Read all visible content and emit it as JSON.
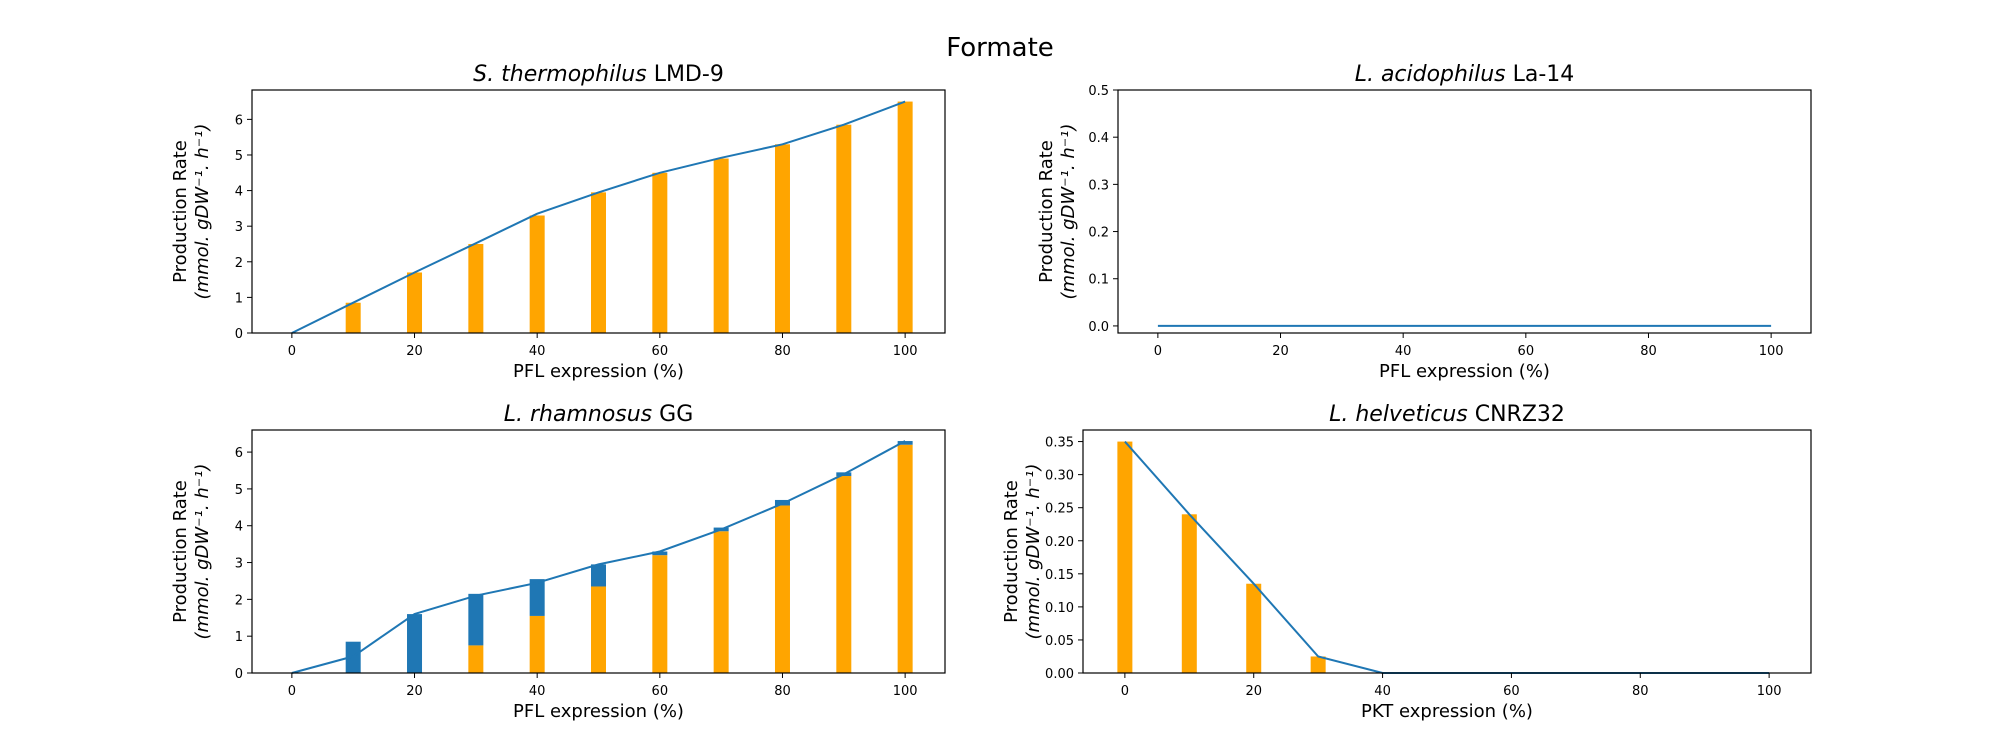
{
  "figure": {
    "suptitle": "Formate",
    "colors": {
      "line": "#1f77b4",
      "bar_orange": "#ffa500",
      "bar_blue": "#1f77b4"
    }
  },
  "chart_data": [
    {
      "type": "bar",
      "title_italic": "S. thermophilus",
      "title_rest": "LMD-9",
      "xlabel": "PFL expression (%)",
      "ylabel_line1": "Production Rate",
      "ylabel_line2": "(mmol. gDW⁻¹. h⁻¹)",
      "xlim": [
        -6.5,
        106.5
      ],
      "ylim": [
        0,
        6.825
      ],
      "xticks": [
        0,
        20,
        40,
        60,
        80,
        100
      ],
      "yticks": [
        0,
        1,
        2,
        3,
        4,
        5,
        6
      ],
      "x": [
        0,
        10,
        20,
        30,
        40,
        50,
        60,
        70,
        80,
        90,
        100
      ],
      "line": [
        0,
        0.85,
        1.7,
        2.52,
        3.35,
        3.95,
        4.5,
        4.92,
        5.3,
        5.85,
        6.5
      ],
      "bars_orange": [
        0,
        0.85,
        1.7,
        2.5,
        3.3,
        3.95,
        4.5,
        4.9,
        5.3,
        5.85,
        6.5
      ],
      "bars_blue": [
        0,
        0,
        0,
        0,
        0,
        0,
        0,
        0,
        0,
        0,
        0
      ]
    },
    {
      "type": "line",
      "title_italic": "L. acidophilus",
      "title_rest": "La-14",
      "xlabel": "PFL expression (%)",
      "ylabel_line1": "Production Rate",
      "ylabel_line2": "(mmol. gDW⁻¹. h⁻¹)",
      "xlim": [
        -6.5,
        106.5
      ],
      "ylim": [
        -0.015,
        0.5
      ],
      "xticks": [
        0,
        20,
        40,
        60,
        80,
        100
      ],
      "yticks": [
        0.0,
        0.1,
        0.2,
        0.3,
        0.4,
        0.5
      ],
      "ytick_decimals": 1,
      "x": [
        0,
        10,
        20,
        30,
        40,
        50,
        60,
        70,
        80,
        90,
        100
      ],
      "line": [
        0,
        0,
        0,
        0,
        0,
        0,
        0,
        0,
        0,
        0,
        0
      ],
      "bars_orange": [],
      "bars_blue": []
    },
    {
      "type": "bar",
      "title_italic": "L. rhamnosus",
      "title_rest": "GG",
      "xlabel": "PFL expression (%)",
      "ylabel_line1": "Production Rate",
      "ylabel_line2": "(mmol. gDW⁻¹. h⁻¹)",
      "xlim": [
        -6.5,
        106.5
      ],
      "ylim": [
        0,
        6.6
      ],
      "xticks": [
        0,
        20,
        40,
        60,
        80,
        100
      ],
      "yticks": [
        0,
        1,
        2,
        3,
        4,
        5,
        6
      ],
      "x": [
        0,
        10,
        20,
        30,
        40,
        50,
        60,
        70,
        80,
        90,
        100
      ],
      "line": [
        0,
        0.45,
        1.6,
        2.1,
        2.45,
        2.95,
        3.3,
        3.9,
        4.6,
        5.4,
        6.3
      ],
      "bars_orange": [
        0,
        0,
        0,
        0.75,
        1.55,
        2.35,
        3.2,
        3.85,
        4.55,
        5.35,
        6.2
      ],
      "bars_blue": [
        0,
        0.85,
        1.6,
        1.4,
        1.0,
        0.6,
        0.1,
        0.1,
        0.15,
        0.1,
        0.1
      ]
    },
    {
      "type": "bar",
      "title_italic": "L. helveticus",
      "title_rest": "CNRZ32",
      "xlabel": "PKT expression (%)",
      "ylabel_line1": "Production Rate",
      "ylabel_line2": "(mmol. gDW⁻¹. h⁻¹)",
      "xlim": [
        -6.5,
        106.5
      ],
      "ylim": [
        0,
        0.3675
      ],
      "xticks": [
        0,
        20,
        40,
        60,
        80,
        100
      ],
      "yticks": [
        0.0,
        0.05,
        0.1,
        0.15,
        0.2,
        0.25,
        0.3,
        0.35
      ],
      "ytick_decimals": 2,
      "x": [
        0,
        10,
        20,
        30,
        40,
        50,
        60,
        70,
        80,
        90,
        100
      ],
      "line": [
        0.35,
        0.24,
        0.135,
        0.025,
        0,
        0,
        0,
        0,
        0,
        0,
        0
      ],
      "bars_orange": [
        0.35,
        0.24,
        0.135,
        0.025,
        0,
        0,
        0,
        0,
        0,
        0,
        0
      ],
      "bars_blue": [
        0,
        0,
        0,
        0,
        0,
        0,
        0,
        0,
        0,
        0,
        0
      ]
    }
  ]
}
